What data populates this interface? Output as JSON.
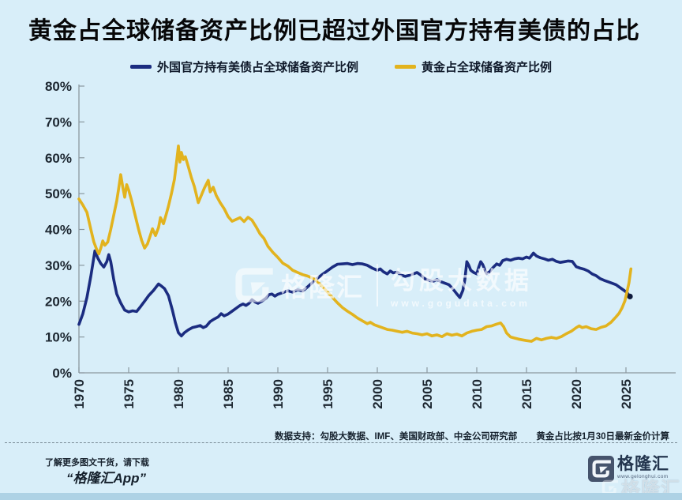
{
  "title": "黄金占全球储备资产比例已超过外国官方持有美债的占比",
  "legend": [
    {
      "label": "外国官方持有美债占全球储备资产比例",
      "color": "#1b2c80"
    },
    {
      "label": "黄金占全球储备资产比例",
      "color": "#e2b31e"
    }
  ],
  "watermark_center": {
    "brand": "格隆汇",
    "product": "勾股大数据",
    "url": "www.gogudata.com"
  },
  "footer": {
    "note_left": "数据支持：勾股大数据、IMF、美国财政部、中金公司研究部",
    "note_right": "黄金占比按1月30日最新金价计算"
  },
  "promo": {
    "line1": "了解更多图文干货，请下载",
    "line2": "“格隆汇App”"
  },
  "logo": {
    "brand": "格隆汇",
    "url": "www.gelonghui.com"
  },
  "watermark_bottom": {
    "brand": "格隆汇"
  },
  "chart_data": {
    "type": "line",
    "title": "黄金占全球储备资产比例已超过外国官方持有美债的占比",
    "xlabel": "",
    "ylabel": "",
    "xlim": [
      1970,
      2026
    ],
    "ylim": [
      0,
      80
    ],
    "grid": false,
    "legend_position": "top",
    "x_ticks": [
      1970,
      1975,
      1980,
      1985,
      1990,
      1995,
      2000,
      2005,
      2010,
      2015,
      2020,
      2025
    ],
    "x_tick_labels": [
      "1970",
      "1975",
      "1980",
      "1985",
      "1990",
      "1995",
      "2000",
      "2005",
      "2010",
      "2015",
      "2020",
      "2025"
    ],
    "y_ticks": [
      0,
      10,
      20,
      30,
      40,
      50,
      60,
      70,
      80
    ],
    "y_tick_labels": [
      "0%",
      "10%",
      "20%",
      "30%",
      "40%",
      "50%",
      "60%",
      "70%",
      "80%"
    ],
    "axis_color": "#8a979f",
    "label_color": "#1c2630",
    "series": [
      {
        "name": "外国官方持有美债占全球储备资产比例",
        "color": "#1b2c80",
        "end_dot": true,
        "points": [
          [
            1970.0,
            13.5
          ],
          [
            1970.4,
            16.5
          ],
          [
            1970.8,
            21
          ],
          [
            1971.2,
            27
          ],
          [
            1971.6,
            34
          ],
          [
            1971.9,
            32
          ],
          [
            1972.2,
            30.5
          ],
          [
            1972.5,
            29.5
          ],
          [
            1972.8,
            31
          ],
          [
            1973.0,
            33
          ],
          [
            1973.2,
            31
          ],
          [
            1973.5,
            26
          ],
          [
            1973.8,
            22
          ],
          [
            1974.2,
            19.5
          ],
          [
            1974.6,
            17.5
          ],
          [
            1975.0,
            17
          ],
          [
            1975.4,
            17.3
          ],
          [
            1975.8,
            17.1
          ],
          [
            1976.2,
            18.5
          ],
          [
            1976.6,
            20
          ],
          [
            1977.0,
            21.5
          ],
          [
            1977.5,
            23
          ],
          [
            1978.0,
            24.8
          ],
          [
            1978.3,
            24.2
          ],
          [
            1978.6,
            23.5
          ],
          [
            1979.0,
            21.5
          ],
          [
            1979.4,
            17.5
          ],
          [
            1979.7,
            14
          ],
          [
            1980.0,
            11.2
          ],
          [
            1980.3,
            10.3
          ],
          [
            1980.6,
            11.2
          ],
          [
            1981.0,
            12
          ],
          [
            1981.4,
            12.6
          ],
          [
            1981.8,
            12.9
          ],
          [
            1982.2,
            13.2
          ],
          [
            1982.5,
            12.6
          ],
          [
            1982.8,
            13
          ],
          [
            1983.2,
            14.3
          ],
          [
            1983.6,
            15
          ],
          [
            1984.0,
            15.6
          ],
          [
            1984.3,
            16.5
          ],
          [
            1984.6,
            15.9
          ],
          [
            1985.0,
            16.4
          ],
          [
            1985.4,
            17.2
          ],
          [
            1985.8,
            18
          ],
          [
            1986.2,
            18.8
          ],
          [
            1986.5,
            19.2
          ],
          [
            1986.8,
            18.8
          ],
          [
            1987.1,
            19.4
          ],
          [
            1987.4,
            20.4
          ],
          [
            1987.7,
            19.8
          ],
          [
            1988.0,
            19.4
          ],
          [
            1988.4,
            20
          ],
          [
            1988.8,
            20.8
          ],
          [
            1989.1,
            21.8
          ],
          [
            1989.4,
            22
          ],
          [
            1989.7,
            21.4
          ],
          [
            1990.0,
            21.9
          ],
          [
            1990.5,
            22.4
          ],
          [
            1991.0,
            22.9
          ],
          [
            1991.5,
            22.5
          ],
          [
            1992.0,
            23.2
          ],
          [
            1992.5,
            22.8
          ],
          [
            1993.0,
            24
          ],
          [
            1993.8,
            26
          ],
          [
            1994.5,
            27.5
          ],
          [
            1995.0,
            28.5
          ],
          [
            1995.5,
            29.5
          ],
          [
            1996.0,
            30.3
          ],
          [
            1996.5,
            30.4
          ],
          [
            1997.0,
            30.5
          ],
          [
            1997.5,
            30.2
          ],
          [
            1998.0,
            30.5
          ],
          [
            1998.5,
            30.4
          ],
          [
            1999.0,
            30
          ],
          [
            1999.5,
            29.2
          ],
          [
            2000.0,
            28.6
          ],
          [
            2000.3,
            29
          ],
          [
            2000.6,
            28.2
          ],
          [
            2001.0,
            27.6
          ],
          [
            2001.3,
            28.4
          ],
          [
            2001.6,
            27.9
          ],
          [
            2002.0,
            28.1
          ],
          [
            2002.4,
            27.3
          ],
          [
            2002.8,
            26.9
          ],
          [
            2003.2,
            27.2
          ],
          [
            2003.6,
            27.6
          ],
          [
            2004.0,
            28
          ],
          [
            2004.4,
            27.2
          ],
          [
            2004.8,
            26.2
          ],
          [
            2005.2,
            25.8
          ],
          [
            2005.6,
            25.5
          ],
          [
            2006.0,
            26
          ],
          [
            2006.4,
            25.4
          ],
          [
            2006.8,
            25
          ],
          [
            2007.2,
            24.6
          ],
          [
            2007.6,
            23.4
          ],
          [
            2008.0,
            22
          ],
          [
            2008.3,
            21
          ],
          [
            2008.6,
            23
          ],
          [
            2008.8,
            26
          ],
          [
            2009.0,
            31
          ],
          [
            2009.2,
            30
          ],
          [
            2009.4,
            28.6
          ],
          [
            2009.7,
            28
          ],
          [
            2010.0,
            27.6
          ],
          [
            2010.2,
            29.5
          ],
          [
            2010.4,
            31
          ],
          [
            2010.6,
            30.2
          ],
          [
            2010.8,
            28.8
          ],
          [
            2011.0,
            27.7
          ],
          [
            2011.3,
            28.2
          ],
          [
            2011.6,
            29.3
          ],
          [
            2012.0,
            30.4
          ],
          [
            2012.3,
            30
          ],
          [
            2012.6,
            31.3
          ],
          [
            2013.0,
            31.7
          ],
          [
            2013.4,
            31.4
          ],
          [
            2013.8,
            31.8
          ],
          [
            2014.2,
            32
          ],
          [
            2014.6,
            31.8
          ],
          [
            2015.0,
            32.3
          ],
          [
            2015.3,
            32
          ],
          [
            2015.7,
            33.4
          ],
          [
            2016.0,
            32.6
          ],
          [
            2016.4,
            32.1
          ],
          [
            2016.8,
            31.8
          ],
          [
            2017.2,
            31.4
          ],
          [
            2017.6,
            31.7
          ],
          [
            2018.0,
            31.1
          ],
          [
            2018.4,
            30.8
          ],
          [
            2018.8,
            31
          ],
          [
            2019.2,
            31.2
          ],
          [
            2019.6,
            31.1
          ],
          [
            2020.0,
            29.6
          ],
          [
            2020.4,
            29.2
          ],
          [
            2020.8,
            28.9
          ],
          [
            2021.2,
            28.4
          ],
          [
            2021.6,
            27.6
          ],
          [
            2022.0,
            27.1
          ],
          [
            2022.4,
            26.3
          ],
          [
            2022.8,
            25.8
          ],
          [
            2023.2,
            25.4
          ],
          [
            2023.6,
            25
          ],
          [
            2024.0,
            24.6
          ],
          [
            2024.4,
            23.8
          ],
          [
            2024.8,
            23
          ],
          [
            2025.1,
            22.4
          ],
          [
            2025.4,
            21.3
          ]
        ]
      },
      {
        "name": "黄金占全球储备资产比例",
        "color": "#e2b31e",
        "end_dot": false,
        "points": [
          [
            1970.0,
            48.5
          ],
          [
            1970.4,
            46.8
          ],
          [
            1970.8,
            44.8
          ],
          [
            1971.2,
            40
          ],
          [
            1971.5,
            36.5
          ],
          [
            1971.8,
            34.3
          ],
          [
            1972.0,
            33.2
          ],
          [
            1972.2,
            34.8
          ],
          [
            1972.4,
            36.8
          ],
          [
            1972.6,
            35.6
          ],
          [
            1972.9,
            36.5
          ],
          [
            1973.2,
            40
          ],
          [
            1973.5,
            44
          ],
          [
            1973.8,
            48
          ],
          [
            1974.0,
            51.5
          ],
          [
            1974.2,
            55.3
          ],
          [
            1974.4,
            52
          ],
          [
            1974.6,
            49
          ],
          [
            1974.8,
            52.5
          ],
          [
            1975.0,
            51
          ],
          [
            1975.3,
            48
          ],
          [
            1975.6,
            44.5
          ],
          [
            1976.0,
            40
          ],
          [
            1976.3,
            37
          ],
          [
            1976.6,
            34.8
          ],
          [
            1976.9,
            36
          ],
          [
            1977.2,
            38.5
          ],
          [
            1977.4,
            40.2
          ],
          [
            1977.7,
            38.3
          ],
          [
            1978.0,
            40.5
          ],
          [
            1978.2,
            43.3
          ],
          [
            1978.5,
            41.6
          ],
          [
            1978.8,
            44.5
          ],
          [
            1979.0,
            46.5
          ],
          [
            1979.3,
            50
          ],
          [
            1979.6,
            54
          ],
          [
            1979.8,
            58.5
          ],
          [
            1980.0,
            63.3
          ],
          [
            1980.15,
            58.8
          ],
          [
            1980.3,
            61.5
          ],
          [
            1980.5,
            59.5
          ],
          [
            1980.7,
            60.3
          ],
          [
            1981.0,
            57.5
          ],
          [
            1981.3,
            54.5
          ],
          [
            1981.6,
            52
          ],
          [
            1982.0,
            47.5
          ],
          [
            1982.3,
            49.5
          ],
          [
            1982.6,
            51.5
          ],
          [
            1983.0,
            53.7
          ],
          [
            1983.2,
            50.5
          ],
          [
            1983.5,
            51.8
          ],
          [
            1983.8,
            49.5
          ],
          [
            1984.2,
            47.5
          ],
          [
            1984.6,
            45.8
          ],
          [
            1985.0,
            43.6
          ],
          [
            1985.4,
            42.3
          ],
          [
            1985.8,
            42.8
          ],
          [
            1986.2,
            43.3
          ],
          [
            1986.6,
            42.2
          ],
          [
            1987.0,
            43.4
          ],
          [
            1987.4,
            42.6
          ],
          [
            1987.8,
            40.8
          ],
          [
            1988.2,
            38.8
          ],
          [
            1988.6,
            37.5
          ],
          [
            1989.0,
            35.3
          ],
          [
            1989.5,
            33.6
          ],
          [
            1990.0,
            32.2
          ],
          [
            1990.5,
            30.6
          ],
          [
            1991.0,
            29.8
          ],
          [
            1991.5,
            28.6
          ],
          [
            1992.0,
            28
          ],
          [
            1992.5,
            27.4
          ],
          [
            1993.0,
            27
          ],
          [
            1993.8,
            26
          ],
          [
            1994.5,
            24
          ],
          [
            1995.0,
            22.5
          ],
          [
            1995.5,
            21
          ],
          [
            1996.0,
            19.5
          ],
          [
            1996.5,
            18.2
          ],
          [
            1997.0,
            17.2
          ],
          [
            1997.5,
            16.3
          ],
          [
            1998.0,
            15.3
          ],
          [
            1998.5,
            14.5
          ],
          [
            1999.0,
            13.7
          ],
          [
            1999.3,
            14.1
          ],
          [
            1999.7,
            13.4
          ],
          [
            2000.0,
            13.1
          ],
          [
            2000.5,
            12.6
          ],
          [
            2001.0,
            12.1
          ],
          [
            2001.5,
            11.9
          ],
          [
            2002.0,
            11.6
          ],
          [
            2002.5,
            11.3
          ],
          [
            2003.0,
            11.6
          ],
          [
            2003.5,
            11.1
          ],
          [
            2004.0,
            10.9
          ],
          [
            2004.5,
            10.6
          ],
          [
            2005.0,
            10.9
          ],
          [
            2005.5,
            10.3
          ],
          [
            2006.0,
            10.6
          ],
          [
            2006.5,
            10.1
          ],
          [
            2007.0,
            10.9
          ],
          [
            2007.5,
            10.5
          ],
          [
            2008.0,
            10.8
          ],
          [
            2008.5,
            10.3
          ],
          [
            2009.0,
            11.1
          ],
          [
            2009.5,
            11.6
          ],
          [
            2010.0,
            11.9
          ],
          [
            2010.5,
            12.1
          ],
          [
            2011.0,
            12.9
          ],
          [
            2011.5,
            13.1
          ],
          [
            2012.0,
            13.6
          ],
          [
            2012.4,
            13.9
          ],
          [
            2012.7,
            12.9
          ],
          [
            2013.0,
            11.1
          ],
          [
            2013.4,
            10
          ],
          [
            2013.8,
            9.7
          ],
          [
            2014.2,
            9.4
          ],
          [
            2014.6,
            9.2
          ],
          [
            2015.0,
            9
          ],
          [
            2015.5,
            8.8
          ],
          [
            2016.0,
            9.6
          ],
          [
            2016.5,
            9.2
          ],
          [
            2017.0,
            9.6
          ],
          [
            2017.5,
            9.9
          ],
          [
            2018.0,
            9.6
          ],
          [
            2018.5,
            10.1
          ],
          [
            2019.0,
            10.9
          ],
          [
            2019.5,
            11.6
          ],
          [
            2020.0,
            12.6
          ],
          [
            2020.3,
            13.1
          ],
          [
            2020.6,
            12.6
          ],
          [
            2021.0,
            12.9
          ],
          [
            2021.5,
            12.3
          ],
          [
            2022.0,
            12.1
          ],
          [
            2022.5,
            12.7
          ],
          [
            2023.0,
            13.1
          ],
          [
            2023.5,
            14.1
          ],
          [
            2024.0,
            15.6
          ],
          [
            2024.3,
            16.6
          ],
          [
            2024.6,
            18.1
          ],
          [
            2024.9,
            20.1
          ],
          [
            2025.1,
            22.6
          ],
          [
            2025.3,
            25.1
          ],
          [
            2025.5,
            29
          ]
        ]
      }
    ]
  }
}
